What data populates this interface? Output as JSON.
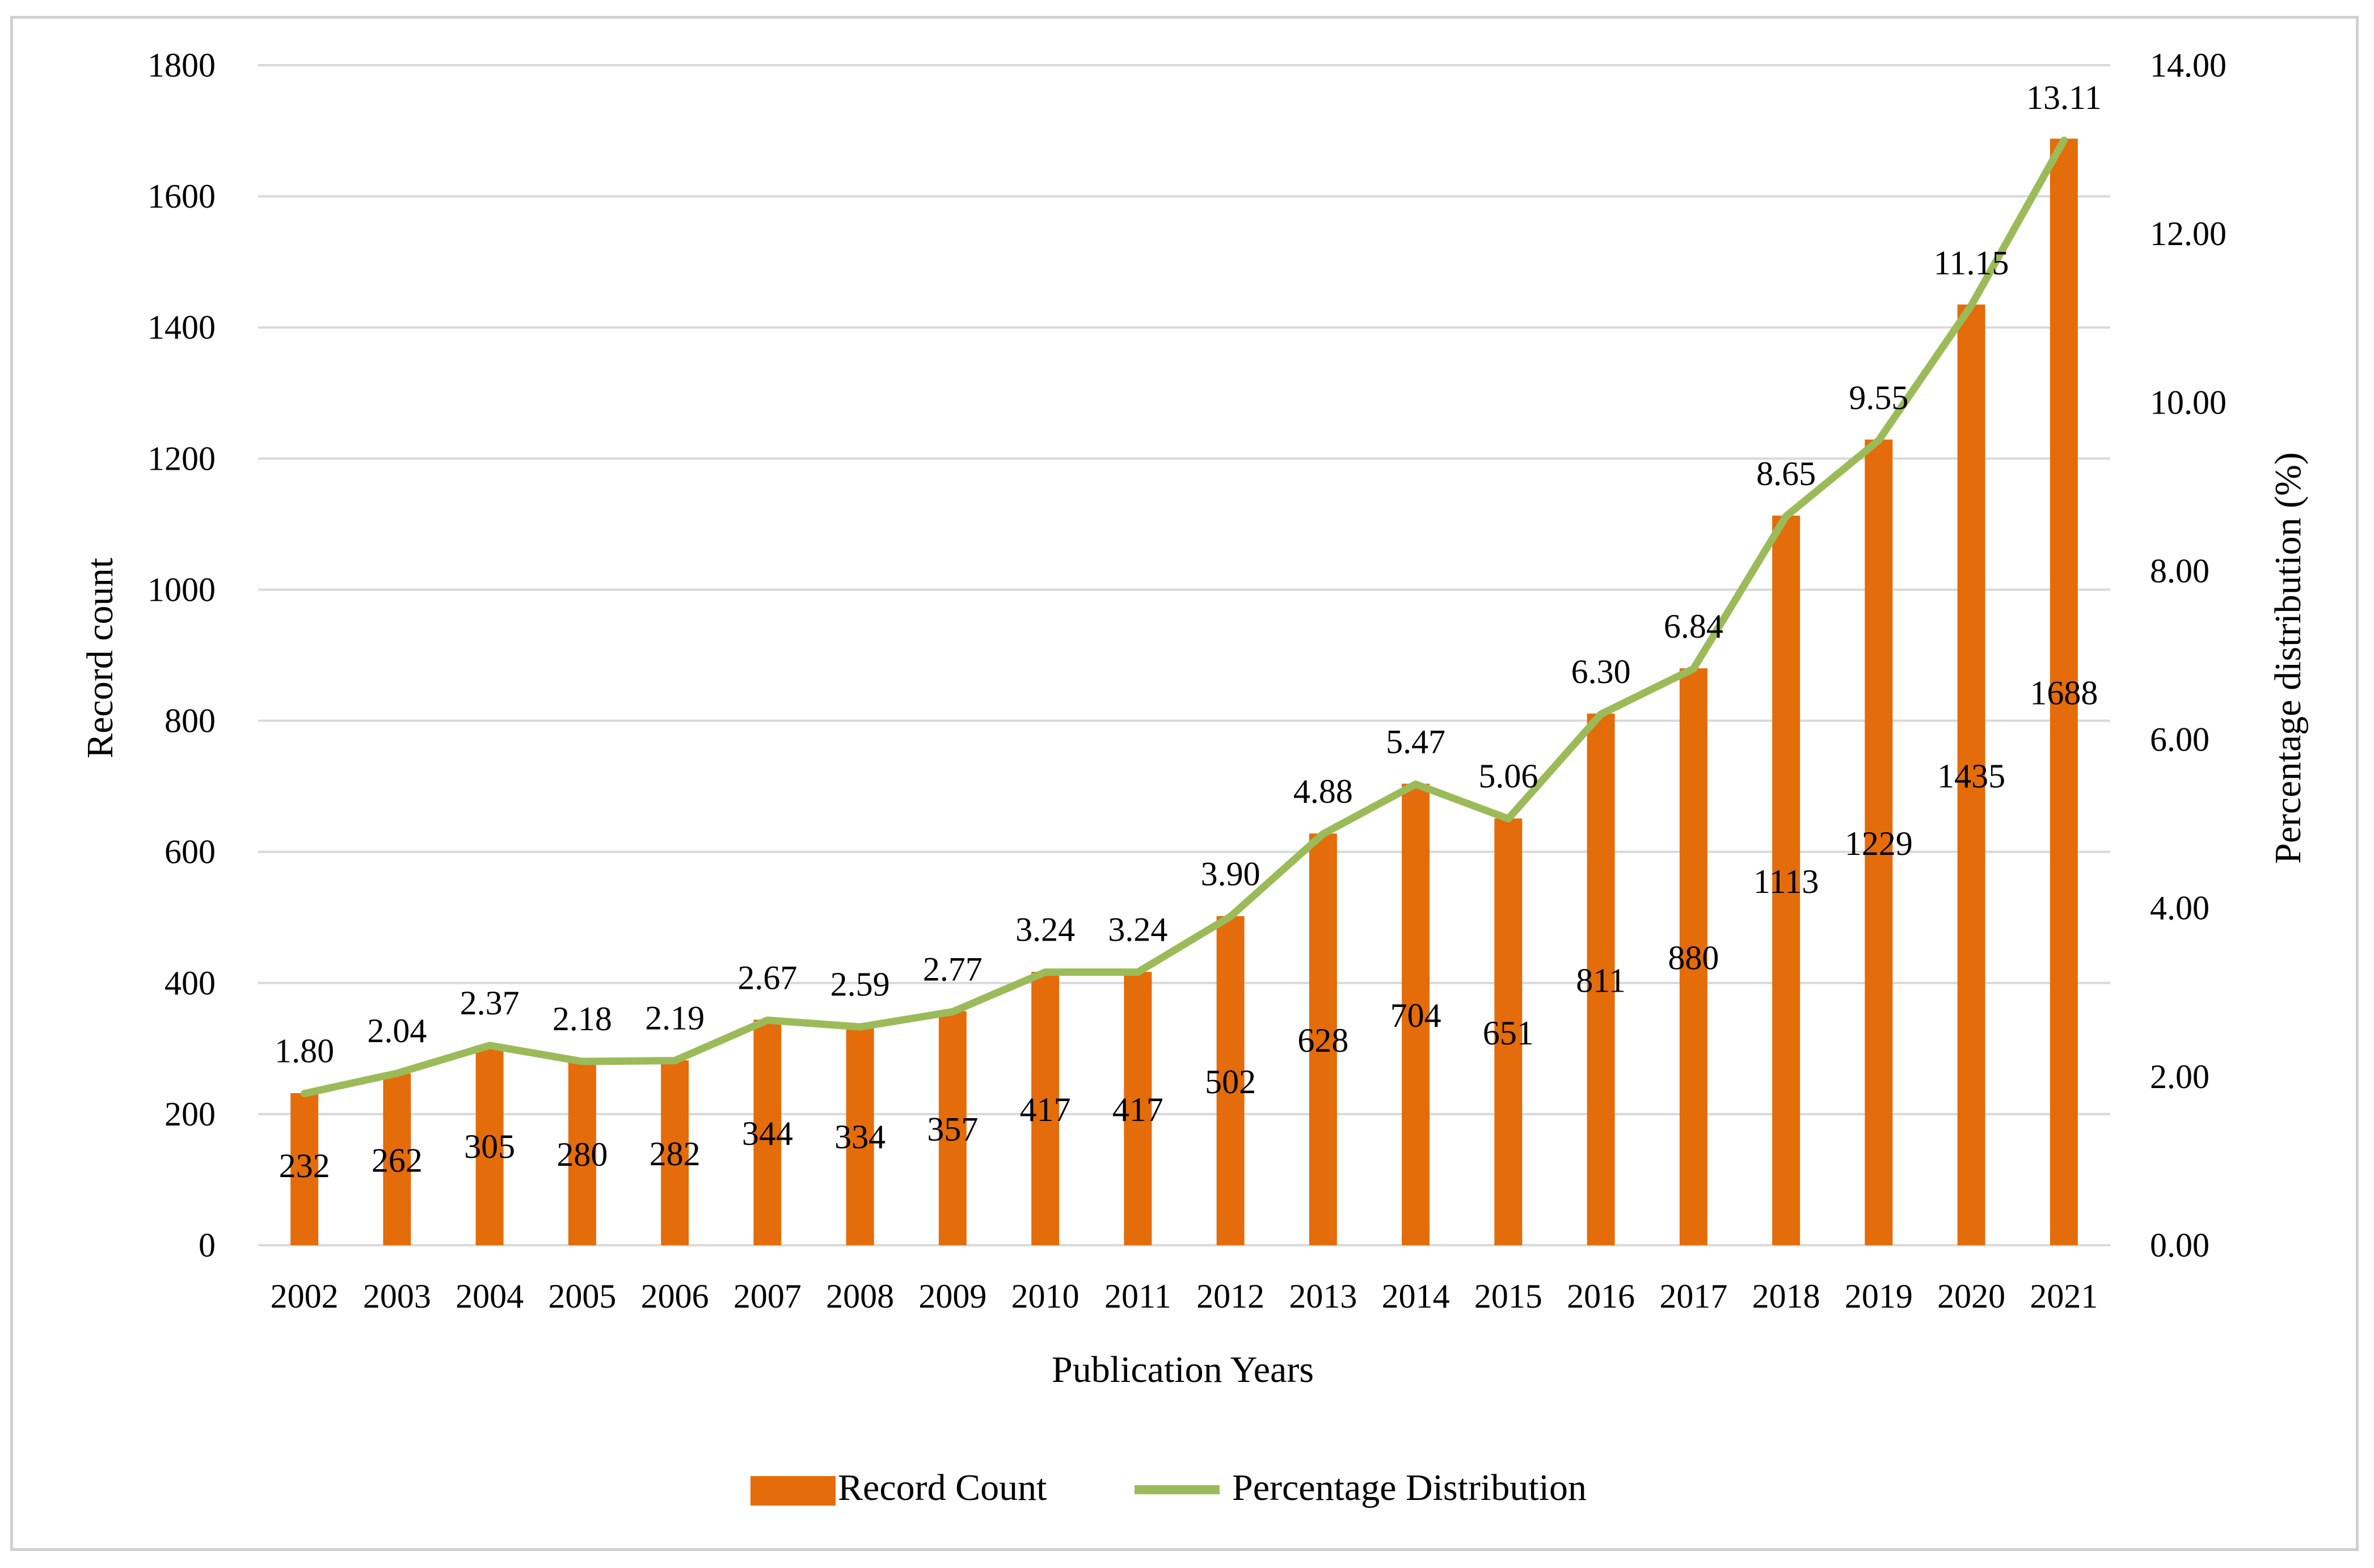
{
  "chart_data": {
    "type": "bar",
    "categories": [
      "2002",
      "2003",
      "2004",
      "2005",
      "2006",
      "2007",
      "2008",
      "2009",
      "2010",
      "2011",
      "2012",
      "2013",
      "2014",
      "2015",
      "2016",
      "2017",
      "2018",
      "2019",
      "2020",
      "2021"
    ],
    "series": [
      {
        "name": "Record Count",
        "type": "bar",
        "axis": "left",
        "values": [
          232,
          262,
          305,
          280,
          282,
          344,
          334,
          357,
          417,
          417,
          502,
          628,
          704,
          651,
          811,
          880,
          1113,
          1229,
          1435,
          1688
        ],
        "labels": [
          "232",
          "262",
          "305",
          "280",
          "282",
          "344",
          "334",
          "357",
          "417",
          "417",
          "502",
          "628",
          "704",
          "651",
          "811",
          "880",
          "1113",
          "1229",
          "1435",
          "1688"
        ]
      },
      {
        "name": "Percentage Distribution",
        "type": "line",
        "axis": "right",
        "values": [
          1.8,
          2.04,
          2.37,
          2.18,
          2.19,
          2.67,
          2.59,
          2.77,
          3.24,
          3.24,
          3.9,
          4.88,
          5.47,
          5.06,
          6.3,
          6.84,
          8.65,
          9.55,
          11.15,
          13.11
        ],
        "labels": [
          "1.80",
          "2.04",
          "2.37",
          "2.18",
          "2.19",
          "2.67",
          "2.59",
          "2.77",
          "3.24",
          "3.24",
          "3.90",
          "4.88",
          "5.47",
          "5.06",
          "6.30",
          "6.84",
          "8.65",
          "9.55",
          "11.15",
          "13.11"
        ]
      }
    ],
    "xlabel": "Publication Years",
    "ylabel": "Record count",
    "y2label": "Percentage distribution (%)",
    "ylim": [
      0,
      1800
    ],
    "yticks": [
      "0",
      "200",
      "400",
      "600",
      "800",
      "1000",
      "1200",
      "1400",
      "1600",
      "1800"
    ],
    "y2lim": [
      0,
      14
    ],
    "y2ticks": [
      "0.00",
      "2.00",
      "4.00",
      "6.00",
      "8.00",
      "10.00",
      "12.00",
      "14.00"
    ],
    "grid": true,
    "legend_position": "bottom",
    "colors": {
      "bar": "#E46C0A",
      "line": "#9BBB59",
      "grid": "#d9d9d9"
    }
  }
}
